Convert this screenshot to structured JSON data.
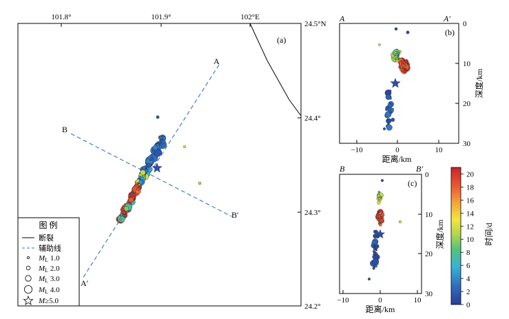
{
  "chart_data": [
    {
      "type": "map",
      "panel_label": "(a)",
      "x_ticks": [
        "101.8°",
        "101.9°",
        "102°E"
      ],
      "y_ticks": [
        "24.5°N",
        "24.4°",
        "24.3°",
        "24.2°"
      ],
      "profile_lines": [
        {
          "start_label": "A",
          "end_label": "A′"
        },
        {
          "start_label": "B",
          "end_label": "B′"
        }
      ],
      "legend": {
        "title": "图 例",
        "items": [
          {
            "symbol": "solid-line",
            "label": "断裂"
          },
          {
            "symbol": "dashed-line",
            "label": "辅助线"
          },
          {
            "symbol": "circle",
            "prefix": "M",
            "sub": "L",
            "value": " 1.0"
          },
          {
            "symbol": "circle",
            "prefix": "M",
            "sub": "L",
            "value": " 2.0"
          },
          {
            "symbol": "circle",
            "prefix": "M",
            "sub": "L",
            "value": " 3.0"
          },
          {
            "symbol": "circle",
            "prefix": "M",
            "sub": "L",
            "value": " 4.0"
          },
          {
            "symbol": "star",
            "prefix": "M",
            "sub": "",
            "value": "≥5.0"
          }
        ]
      }
    },
    {
      "type": "scatter",
      "panel_label": "(b)",
      "left_label": "A",
      "right_label": "A′",
      "xlabel": "距离/km",
      "ylabel": "深度/km",
      "x_ticks": [
        "−10",
        "0",
        "10"
      ],
      "y_ticks": [
        "0",
        "10",
        "20",
        "30"
      ],
      "xlim": [
        -14,
        14
      ],
      "ylim": [
        0,
        30
      ]
    },
    {
      "type": "scatter",
      "panel_label": "(c)",
      "left_label": "B",
      "right_label": "B′",
      "xlabel": "距离/km",
      "ylabel": "深度/km",
      "x_ticks": [
        "−10",
        "0",
        "10"
      ],
      "y_ticks": [
        "0",
        "10",
        "20",
        "30"
      ],
      "xlim": [
        -11,
        11
      ],
      "ylim": [
        0,
        30
      ]
    },
    {
      "type": "colorbar",
      "label": "时间/d",
      "ticks": [
        "0",
        "2",
        "4",
        "6",
        "8",
        "10",
        "12",
        "14",
        "16",
        "18",
        "20"
      ],
      "range": [
        0,
        21
      ]
    }
  ]
}
